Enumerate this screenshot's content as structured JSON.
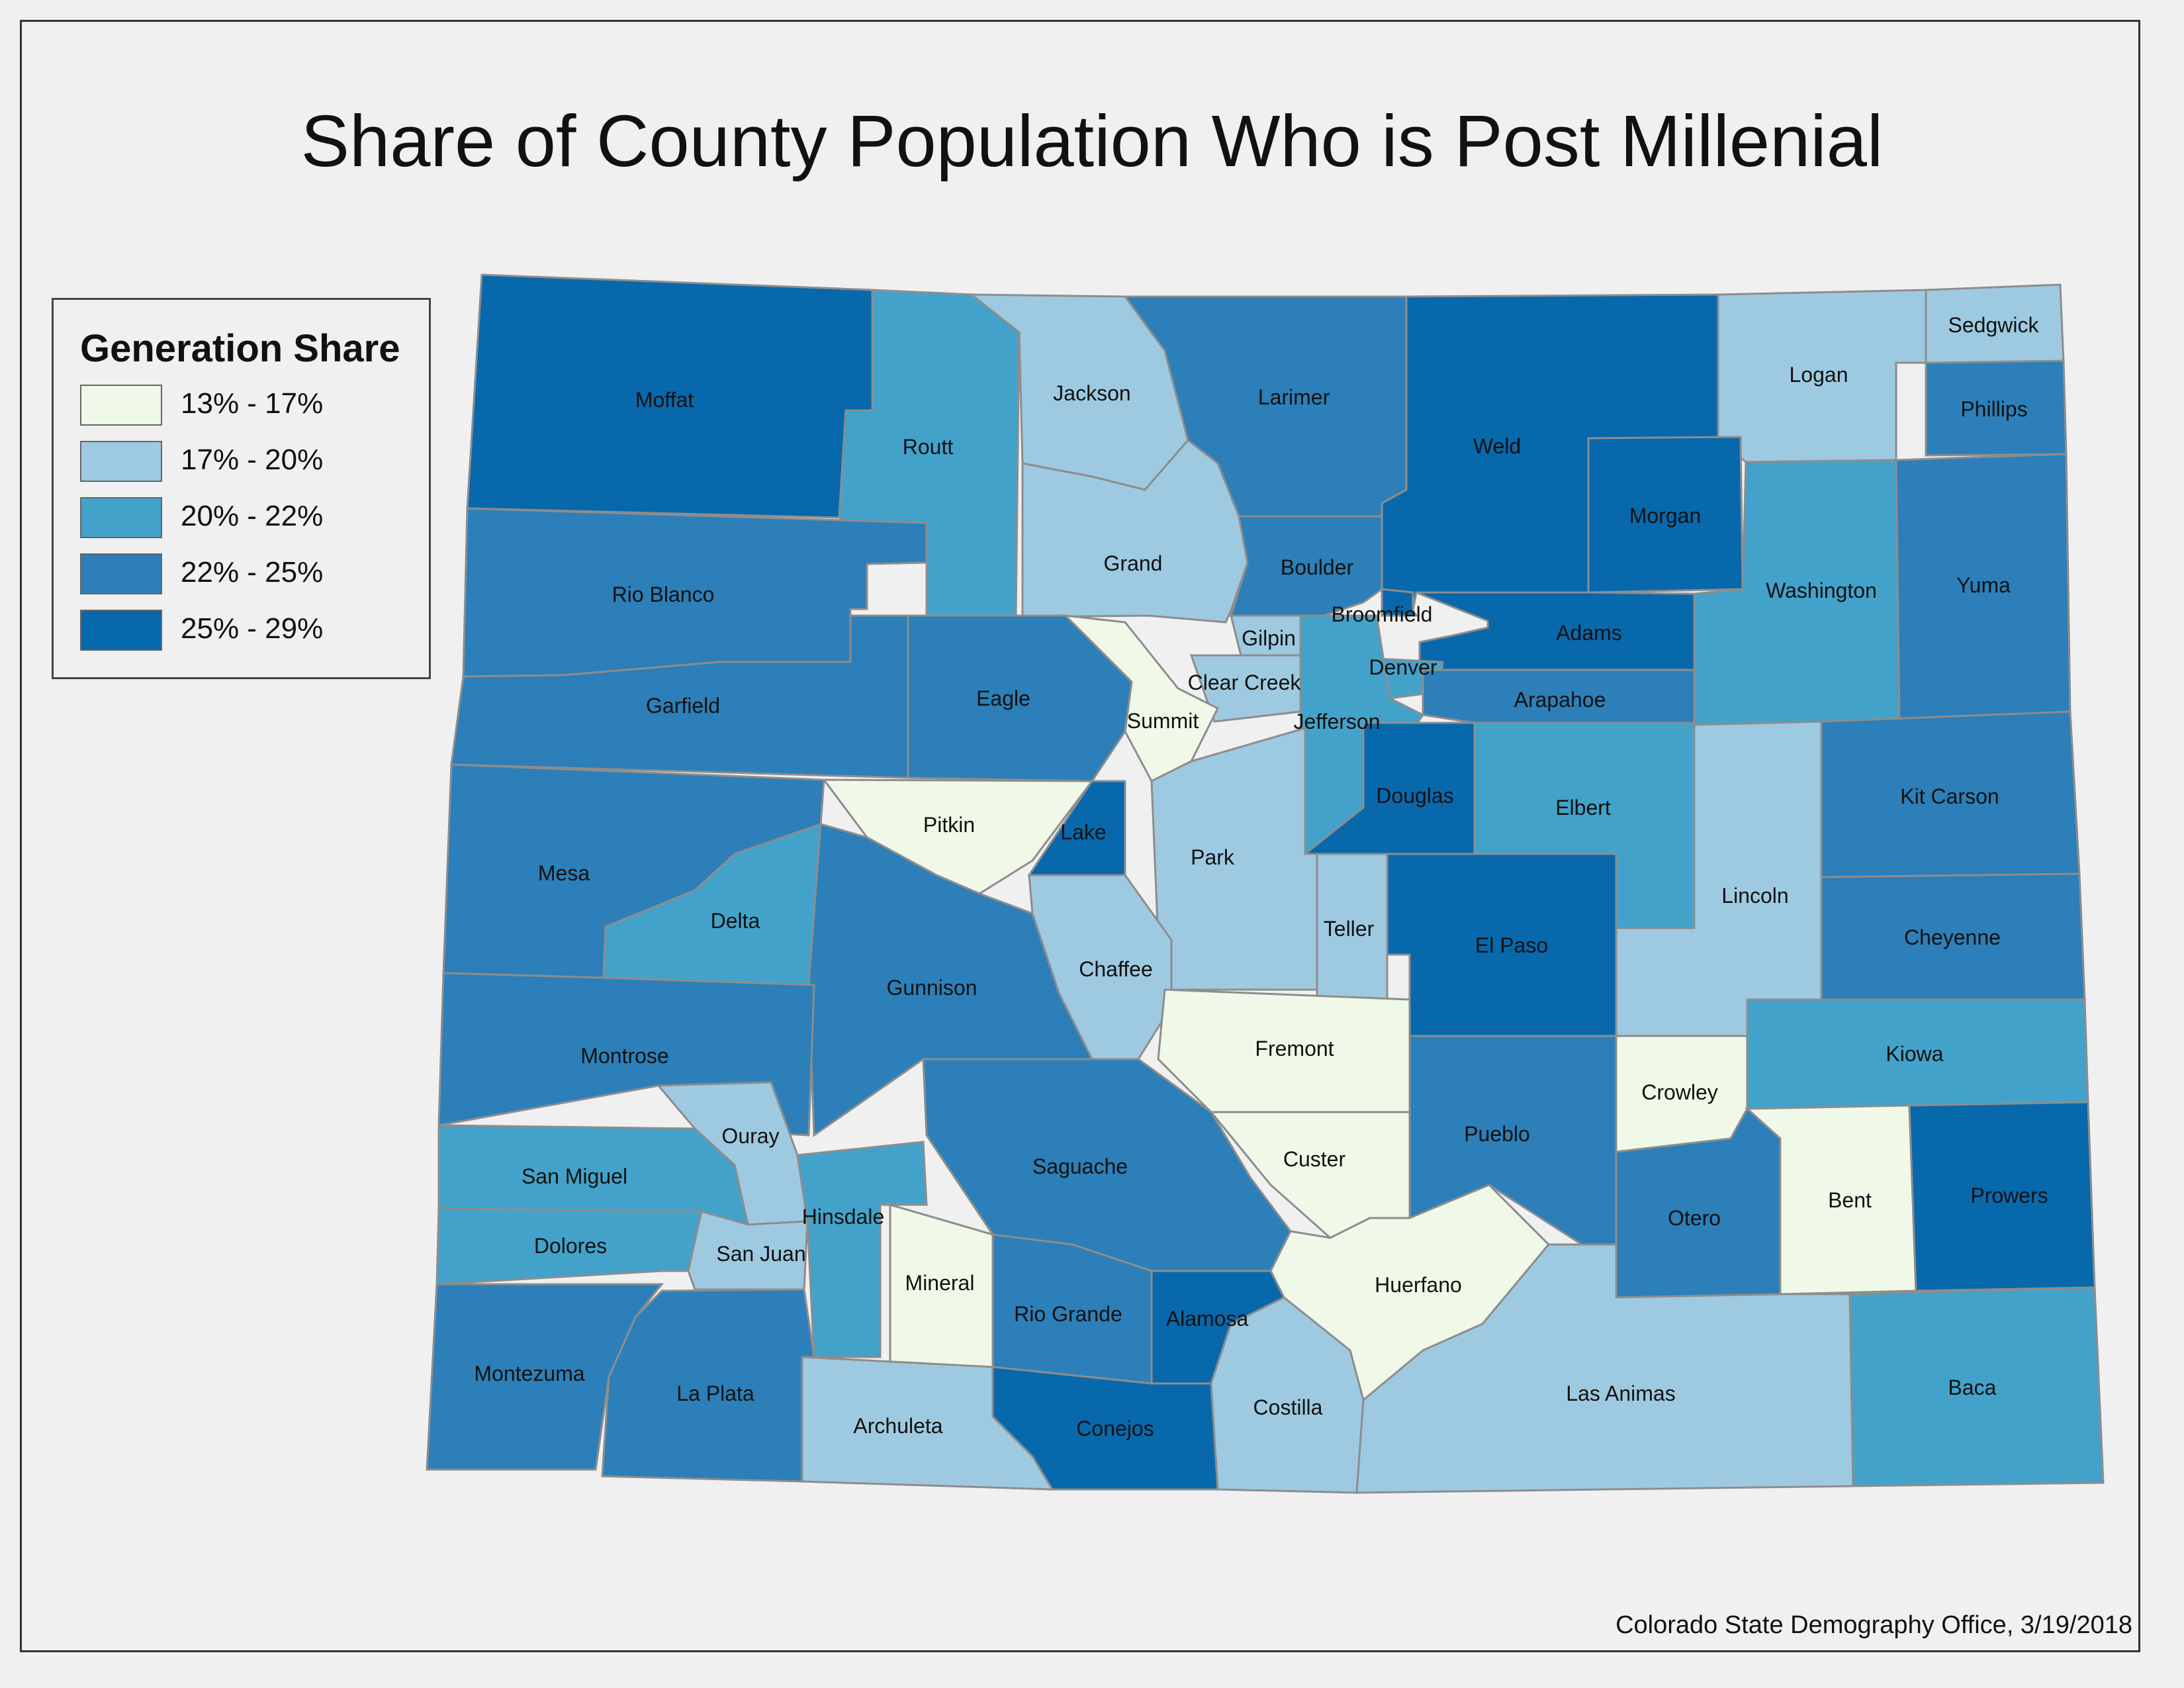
{
  "title": "Share of County Population Who is Post Millenial",
  "legend": {
    "title": "Generation Share",
    "items": [
      {
        "label": "13% - 17%",
        "color": "#f0f9e8"
      },
      {
        "label": "17% - 20%",
        "color": "#9ecae1"
      },
      {
        "label": "20% - 22%",
        "color": "#43a2ca"
      },
      {
        "label": "22% - 25%",
        "color": "#2c7fb8"
      },
      {
        "label": "25% - 29%",
        "color": "#0868ac"
      }
    ]
  },
  "credit": "Colorado State Demography Office, 3/19/2018",
  "counties": [
    {
      "name": "Moffat",
      "class": 4
    },
    {
      "name": "Routt",
      "class": 2
    },
    {
      "name": "Jackson",
      "class": 1
    },
    {
      "name": "Larimer",
      "class": 3
    },
    {
      "name": "Weld",
      "class": 4
    },
    {
      "name": "Logan",
      "class": 1
    },
    {
      "name": "Sedgwick",
      "class": 1
    },
    {
      "name": "Phillips",
      "class": 3
    },
    {
      "name": "Morgan",
      "class": 4
    },
    {
      "name": "Rio Blanco",
      "class": 3
    },
    {
      "name": "Grand",
      "class": 1
    },
    {
      "name": "Boulder",
      "class": 3
    },
    {
      "name": "Broomfield",
      "class": 4
    },
    {
      "name": "Washington",
      "class": 2
    },
    {
      "name": "Yuma",
      "class": 3
    },
    {
      "name": "Gilpin",
      "class": 1
    },
    {
      "name": "Adams",
      "class": 4
    },
    {
      "name": "Garfield",
      "class": 3
    },
    {
      "name": "Eagle",
      "class": 3
    },
    {
      "name": "Clear Creek",
      "class": 1
    },
    {
      "name": "Denver",
      "class": 2
    },
    {
      "name": "Arapahoe",
      "class": 3
    },
    {
      "name": "Summit",
      "class": 0
    },
    {
      "name": "Jefferson",
      "class": 2
    },
    {
      "name": "Douglas",
      "class": 4
    },
    {
      "name": "Elbert",
      "class": 2
    },
    {
      "name": "Kit Carson",
      "class": 3
    },
    {
      "name": "Pitkin",
      "class": 0
    },
    {
      "name": "Lake",
      "class": 4
    },
    {
      "name": "Park",
      "class": 1
    },
    {
      "name": "Mesa",
      "class": 3
    },
    {
      "name": "Delta",
      "class": 2
    },
    {
      "name": "Teller",
      "class": 1
    },
    {
      "name": "El Paso",
      "class": 4
    },
    {
      "name": "Lincoln",
      "class": 1
    },
    {
      "name": "Cheyenne",
      "class": 3
    },
    {
      "name": "Chaffee",
      "class": 1
    },
    {
      "name": "Gunnison",
      "class": 3
    },
    {
      "name": "Montrose",
      "class": 3
    },
    {
      "name": "Fremont",
      "class": 0
    },
    {
      "name": "Kiowa",
      "class": 2
    },
    {
      "name": "Crowley",
      "class": 0
    },
    {
      "name": "Ouray",
      "class": 1
    },
    {
      "name": "Pueblo",
      "class": 3
    },
    {
      "name": "San Miguel",
      "class": 2
    },
    {
      "name": "Saguache",
      "class": 3
    },
    {
      "name": "Custer",
      "class": 0
    },
    {
      "name": "Hinsdale",
      "class": 2
    },
    {
      "name": "Bent",
      "class": 0
    },
    {
      "name": "Prowers",
      "class": 4
    },
    {
      "name": "Otero",
      "class": 3
    },
    {
      "name": "Dolores",
      "class": 2
    },
    {
      "name": "San Juan",
      "class": 1
    },
    {
      "name": "Mineral",
      "class": 0
    },
    {
      "name": "Huerfano",
      "class": 0
    },
    {
      "name": "Rio Grande",
      "class": 3
    },
    {
      "name": "Alamosa",
      "class": 4
    },
    {
      "name": "Montezuma",
      "class": 3
    },
    {
      "name": "La Plata",
      "class": 3
    },
    {
      "name": "Archuleta",
      "class": 1
    },
    {
      "name": "Conejos",
      "class": 4
    },
    {
      "name": "Costilla",
      "class": 1
    },
    {
      "name": "Las Animas",
      "class": 1
    },
    {
      "name": "Baca",
      "class": 2
    }
  ]
}
